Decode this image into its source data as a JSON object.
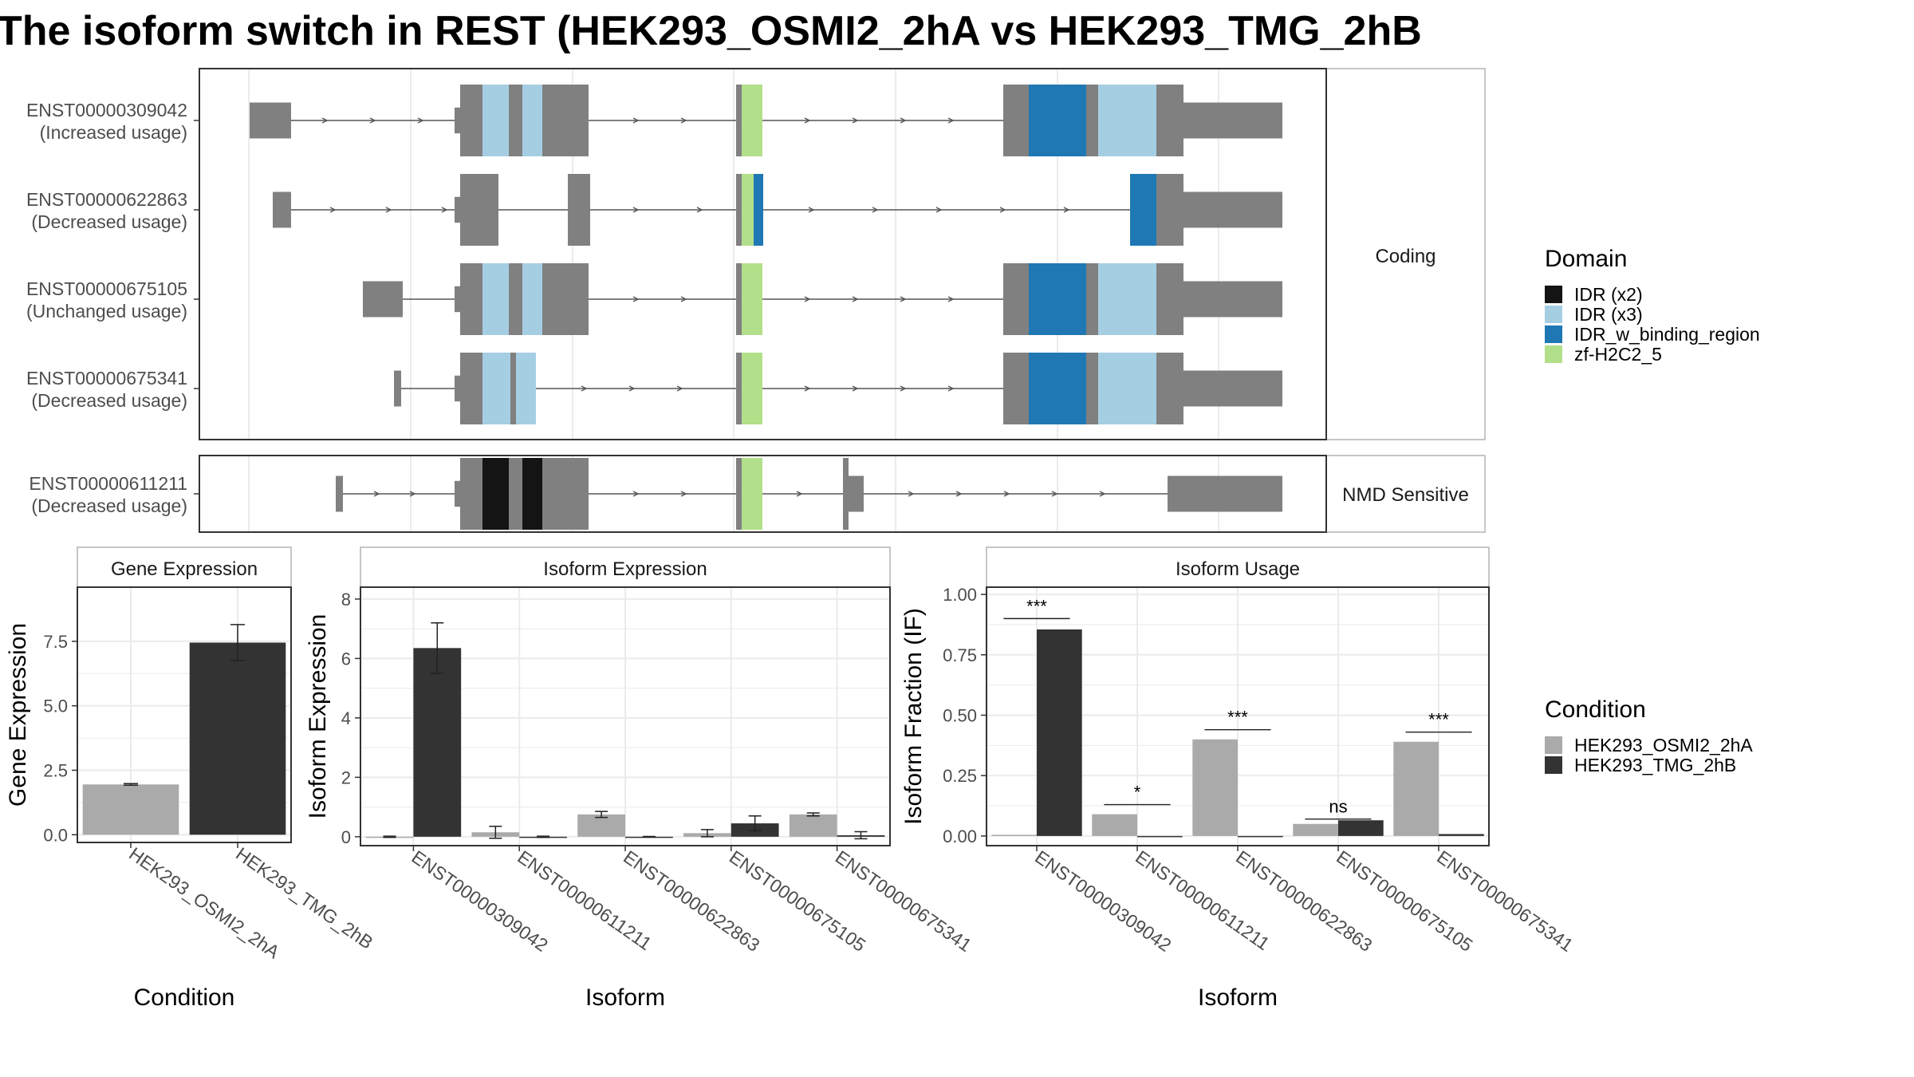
{
  "title": "The isoform switch in REST (HEK293_OSMI2_2hA vs HEK293_TMG_2hB",
  "colors": {
    "exon": "#808080",
    "idr_x2": "#141414",
    "idr_x3": "#a6cee3",
    "idr_w_binding_region": "#1f78b4",
    "zf_h2c2_5": "#b2df8a",
    "cond_a": "#aaaaaa",
    "cond_b": "#333333",
    "frame": "#333333",
    "strip_border": "#b3b3b3",
    "grid": "#ebebeb"
  },
  "structure": {
    "facets": [
      "Coding",
      "NMD Sensitive"
    ],
    "transcripts": [
      {
        "id": "ENST00000309042",
        "usage": "(Increased usage)",
        "facet": "Coding"
      },
      {
        "id": "ENST00000622863",
        "usage": "(Decreased usage)",
        "facet": "Coding"
      },
      {
        "id": "ENST00000675105",
        "usage": "(Unchanged usage)",
        "facet": "Coding"
      },
      {
        "id": "ENST00000675341",
        "usage": "(Decreased usage)",
        "facet": "Coding"
      },
      {
        "id": "ENST00000611211",
        "usage": "(Decreased usage)",
        "facet": "NMD Sensitive"
      }
    ]
  },
  "domain_legend": {
    "title": "Domain",
    "items": [
      {
        "label": "IDR (x2)",
        "color": "#141414"
      },
      {
        "label": "IDR (x3)",
        "color": "#a6cee3"
      },
      {
        "label": "IDR_w_binding_region",
        "color": "#1f78b4"
      },
      {
        "label": "zf-H2C2_5",
        "color": "#b2df8a"
      }
    ]
  },
  "condition_legend": {
    "title": "Condition",
    "items": [
      {
        "label": "HEK293_OSMI2_2hA",
        "color": "#aaaaaa"
      },
      {
        "label": "HEK293_TMG_2hB",
        "color": "#333333"
      }
    ]
  },
  "chart_data": [
    {
      "type": "bar",
      "title": "Gene Expression",
      "xlabel": "Condition",
      "ylabel": "Gene Expression",
      "categories": [
        "HEK293_OSMI2_2hA",
        "HEK293_TMG_2hB"
      ],
      "values": [
        1.95,
        7.45
      ],
      "errors": [
        0.03,
        0.7
      ],
      "ylim": [
        -0.3,
        9.6
      ],
      "yticks": [
        "0.0",
        "2.5",
        "5.0",
        "7.5"
      ],
      "ytick_values": [
        0,
        2.5,
        5,
        7.5
      ]
    },
    {
      "type": "bar",
      "title": "Isoform Expression",
      "xlabel": "Isoform",
      "ylabel": "Isoform Expression",
      "categories": [
        "ENST00000309042",
        "ENST00000611211",
        "ENST00000622863",
        "ENST00000675105",
        "ENST00000675341"
      ],
      "series": [
        {
          "name": "HEK293_OSMI2_2hA",
          "values": [
            0.0,
            0.15,
            0.75,
            0.12,
            0.75
          ],
          "errors": [
            0.02,
            0.2,
            0.1,
            0.12,
            0.05
          ]
        },
        {
          "name": "HEK293_TMG_2hB",
          "values": [
            6.35,
            0.0,
            0.0,
            0.45,
            0.05
          ],
          "errors": [
            0.85,
            0.02,
            0.01,
            0.25,
            0.12
          ]
        }
      ],
      "ylim": [
        -0.3,
        8.4
      ],
      "yticks": [
        "0",
        "2",
        "4",
        "6",
        "8"
      ],
      "ytick_values": [
        0,
        2,
        4,
        6,
        8
      ]
    },
    {
      "type": "bar",
      "title": "Isoform Usage",
      "xlabel": "Isoform",
      "ylabel": "Isoform Fraction (IF)",
      "categories": [
        "ENST00000309042",
        "ENST00000611211",
        "ENST00000622863",
        "ENST00000675105",
        "ENST00000675341"
      ],
      "series": [
        {
          "name": "HEK293_OSMI2_2hA",
          "values": [
            0.005,
            0.09,
            0.4,
            0.05,
            0.39
          ]
        },
        {
          "name": "HEK293_TMG_2hB",
          "values": [
            0.855,
            0.0,
            0.0,
            0.065,
            0.008
          ]
        }
      ],
      "significance": [
        "***",
        "*",
        "***",
        "ns",
        "***"
      ],
      "sig_line_values": [
        0.9,
        0.13,
        0.44,
        0.07,
        0.43
      ],
      "ylim": [
        -0.04,
        1.03
      ],
      "yticks": [
        "0.00",
        "0.25",
        "0.50",
        "0.75",
        "1.00"
      ],
      "ytick_values": [
        0,
        0.25,
        0.5,
        0.75,
        1.0
      ]
    }
  ]
}
